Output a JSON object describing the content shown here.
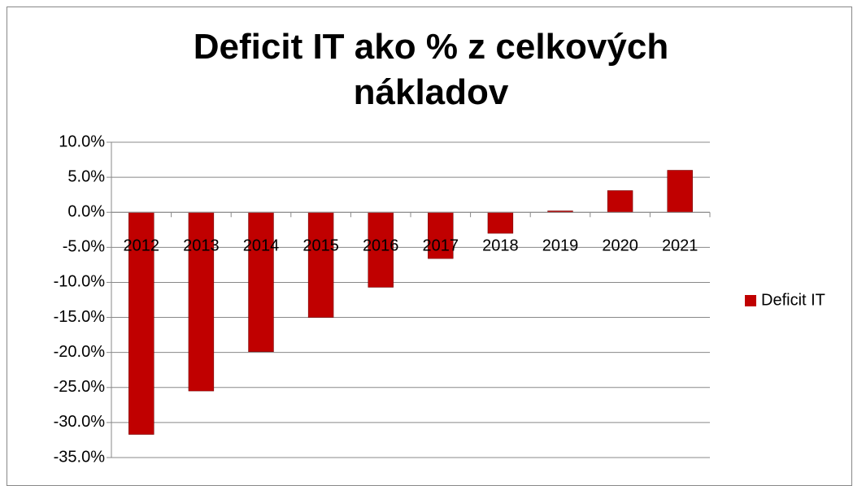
{
  "chart_data": {
    "type": "bar",
    "title": "Deficit IT ako % z celkových nákladov",
    "categories": [
      "2012",
      "2013",
      "2014",
      "2015",
      "2016",
      "2017",
      "2018",
      "2019",
      "2020",
      "2021"
    ],
    "series": [
      {
        "name": "Deficit IT",
        "color": "#c00000",
        "values": [
          -31.7,
          -25.5,
          -19.9,
          -15.0,
          -10.7,
          -6.6,
          -3.0,
          0.2,
          3.1,
          6.0
        ]
      }
    ],
    "ylim": [
      -35,
      10
    ],
    "yticks": [
      {
        "value": -35,
        "label": "-35.0%"
      },
      {
        "value": -30,
        "label": "-30.0%"
      },
      {
        "value": -25,
        "label": "-25.0%"
      },
      {
        "value": -20,
        "label": "-20.0%"
      },
      {
        "value": -15,
        "label": "-15.0%"
      },
      {
        "value": -10,
        "label": "-10.0%"
      },
      {
        "value": -5,
        "label": "-5.0%"
      },
      {
        "value": 0,
        "label": "0.0%"
      },
      {
        "value": 5,
        "label": "5.0%"
      },
      {
        "value": 10,
        "label": "10.0%"
      }
    ],
    "grid": true,
    "legend": "right"
  }
}
